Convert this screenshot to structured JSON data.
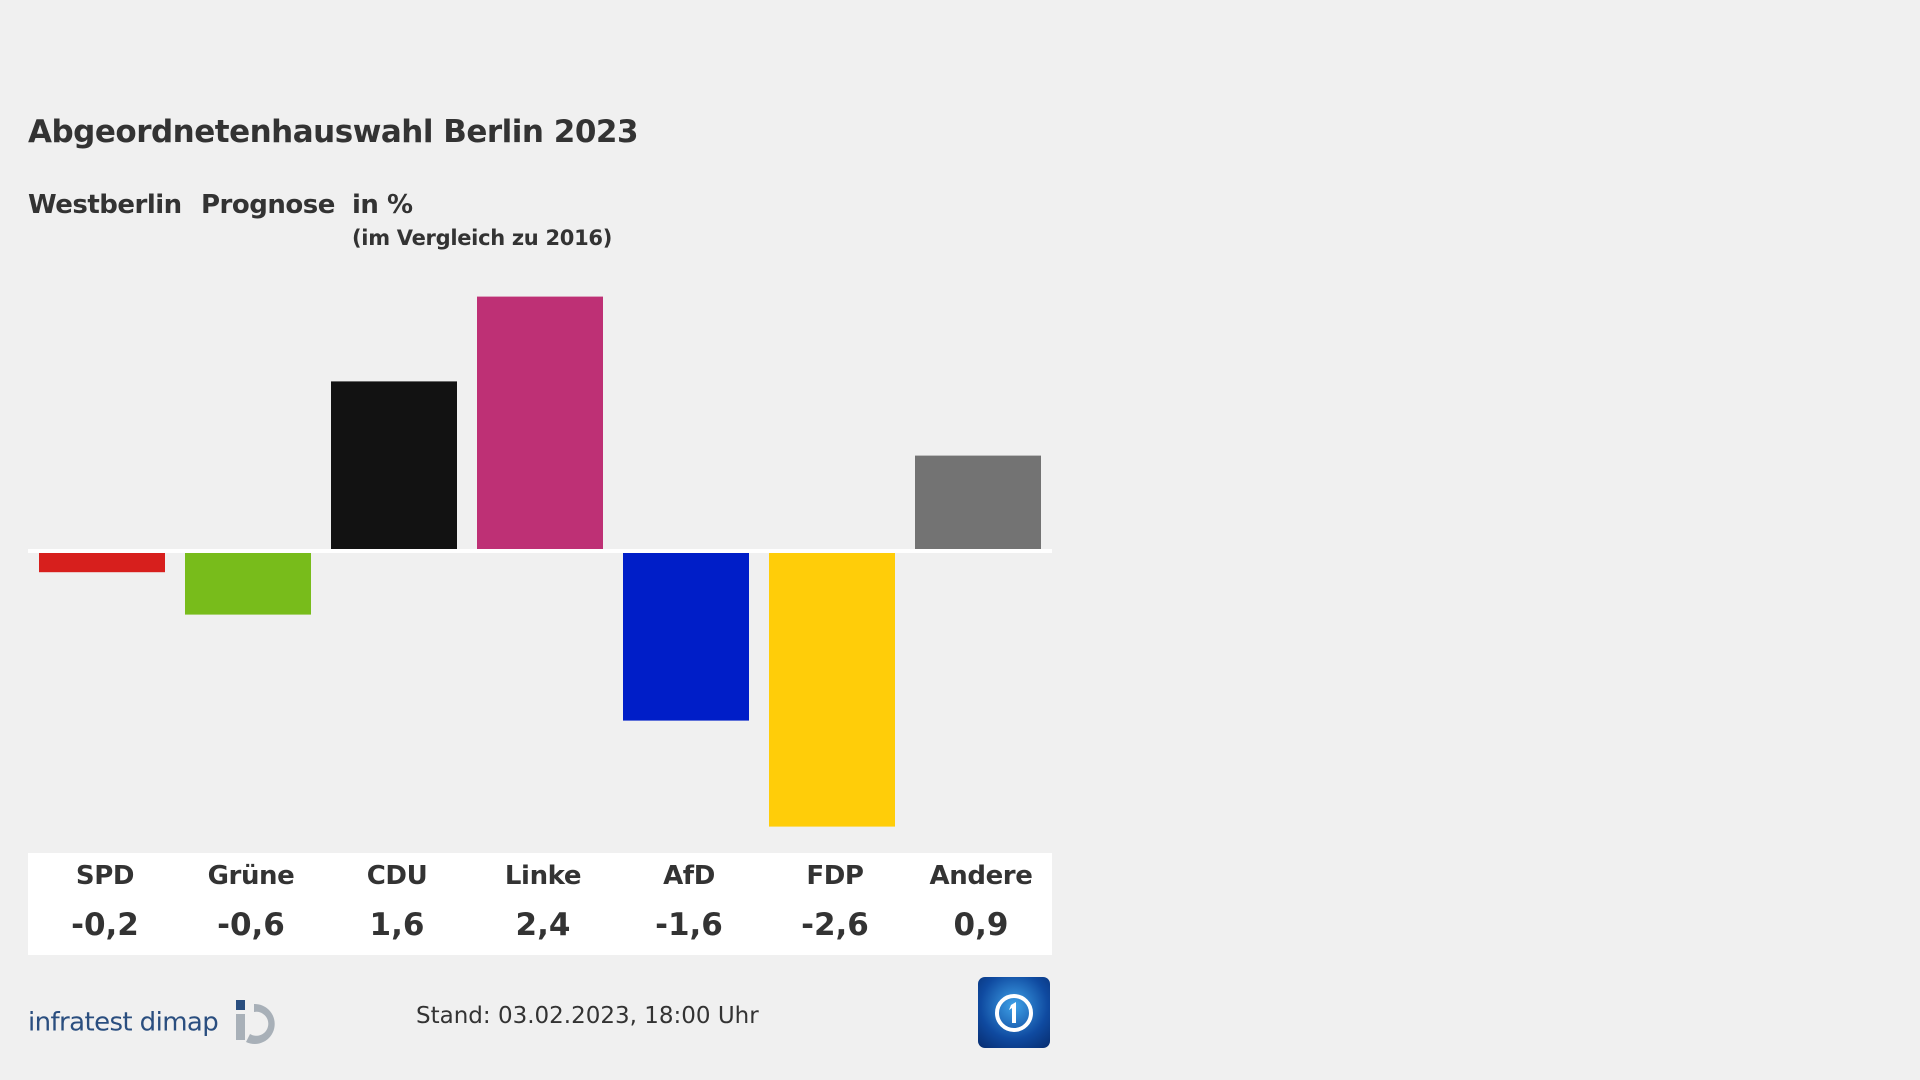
{
  "chart_data": {
    "type": "bar",
    "title": "Abgeordnetenhauswahl Berlin 2023",
    "subtitle": [
      "Westberlin",
      "Prognose",
      "in %"
    ],
    "note": "(im Vergleich zu 2016)",
    "categories": [
      "SPD",
      "Grüne",
      "CDU",
      "Linke",
      "AfD",
      "FDP",
      "Andere"
    ],
    "values": [
      -0.2,
      -0.6,
      1.6,
      2.4,
      -1.6,
      -2.6,
      0.9
    ],
    "value_labels": [
      "-0,2",
      "-0,6",
      "1,6",
      "2,4",
      "-1,6",
      "-2,6",
      "0,9"
    ],
    "colors": [
      "#d71f1d",
      "#78bc1b",
      "#121212",
      "#be3075",
      "#001ec8",
      "#ffcd09",
      "#737373"
    ],
    "xlabel": "",
    "ylabel": "",
    "ylim": [
      -2.6,
      2.4
    ]
  },
  "footer": {
    "source": "infratest dimap",
    "stand": "Stand:  03.02.2023, 18:00 Uhr"
  }
}
